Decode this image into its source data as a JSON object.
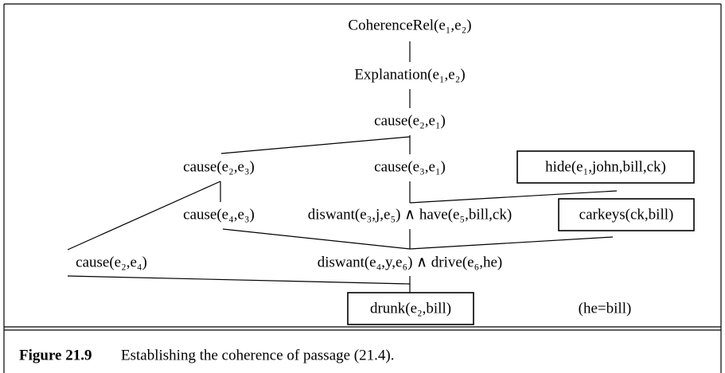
{
  "nodes": [
    {
      "label": "CoherenceRel(e₁,e₂)"
    },
    {
      "label": "Explanation(e₁,e₂)"
    },
    {
      "label": "cause(e₂,e₁)"
    },
    {
      "label": "cause(e₂,e₃)"
    },
    {
      "label": "cause(e₃,e₁)"
    },
    {
      "label": "hide(e₁,john,bill,ck)"
    },
    {
      "label": "cause(e₄,e₃)"
    },
    {
      "label": "diswant(e₃,j,e₅) ∧ have(e₅,bill,ck)"
    },
    {
      "label": "carkeys(ck,bill)"
    },
    {
      "label": "cause(e₂,e₄)"
    },
    {
      "label": "diswant(e₄,y,e₆) ∧ drive(e₆,he)"
    },
    {
      "label": "drunk(e₂,bill)"
    },
    {
      "label": "(he=bill)"
    }
  ],
  "caption": {
    "label": "Figure 21.9",
    "text": "Establishing the coherence of passage (21.4)."
  }
}
